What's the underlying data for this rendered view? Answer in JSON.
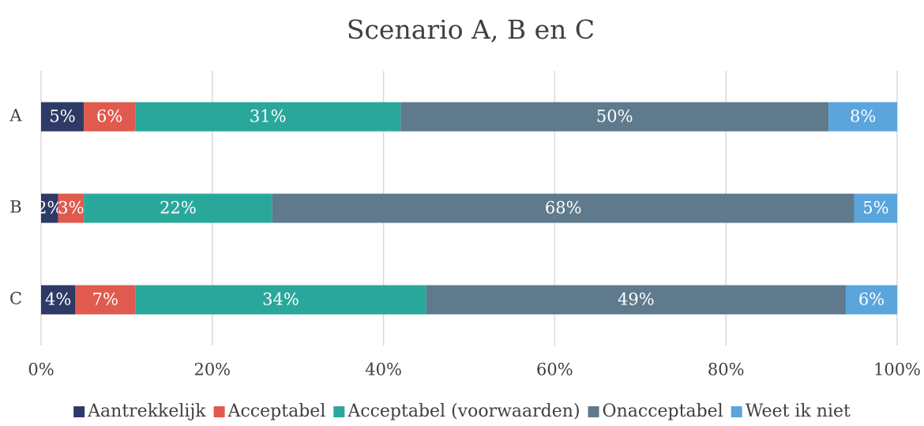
{
  "chart_data": {
    "type": "stacked-bar-horizontal",
    "title": "Scenario A, B en C",
    "categories": [
      "A",
      "B",
      "C"
    ],
    "series": [
      {
        "name": "Aantrekkelijk",
        "color": "#2e3a66",
        "values": [
          5,
          2,
          4
        ],
        "value_labels": [
          "5%",
          "2%",
          "4%"
        ]
      },
      {
        "name": "Acceptabel",
        "color": "#e05a4e",
        "values": [
          6,
          3,
          7
        ],
        "value_labels": [
          "6%",
          "3%",
          "7%"
        ]
      },
      {
        "name": "Acceptabel (voorwaarden)",
        "color": "#2aa79b",
        "values": [
          31,
          22,
          34
        ],
        "value_labels": [
          "31%",
          "22%",
          "34%"
        ]
      },
      {
        "name": "Onacceptabel",
        "color": "#5f7a8c",
        "values": [
          50,
          68,
          49
        ],
        "value_labels": [
          "50%",
          "68%",
          "49%"
        ]
      },
      {
        "name": "Weet ik niet",
        "color": "#5aa5dc",
        "values": [
          8,
          5,
          6
        ],
        "value_labels": [
          "8%",
          "5%",
          "6%"
        ]
      }
    ],
    "xlim": [
      0,
      100
    ],
    "xticks": [
      {
        "value": 0,
        "label": "0%"
      },
      {
        "value": 20,
        "label": "20%"
      },
      {
        "value": 40,
        "label": "40%"
      },
      {
        "value": 60,
        "label": "60%"
      },
      {
        "value": 80,
        "label": "80%"
      },
      {
        "value": 100,
        "label": "100%"
      }
    ],
    "grid": true,
    "legend": "bottom"
  }
}
